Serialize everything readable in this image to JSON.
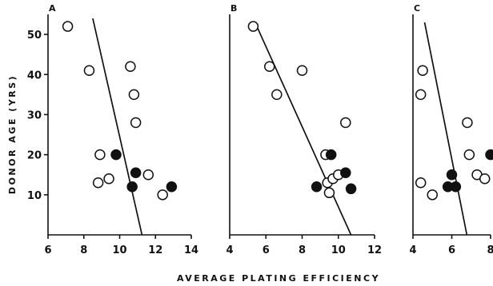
{
  "chart_data": {
    "type": "scatter",
    "xlabel": "AVERAGE PLATING EFFICIENCY",
    "ylabel": "DONOR AGE (YRS)",
    "panels": [
      {
        "label": "A",
        "xlim": [
          6,
          14
        ],
        "xticks": [
          6,
          8,
          10,
          12,
          14
        ],
        "ylim": [
          0,
          55
        ],
        "yticks": [
          10,
          20,
          30,
          40,
          50
        ],
        "show_y_ticks": true,
        "open_points": [
          {
            "x": 7.1,
            "y": 52
          },
          {
            "x": 8.3,
            "y": 41
          },
          {
            "x": 10.6,
            "y": 42
          },
          {
            "x": 10.8,
            "y": 35
          },
          {
            "x": 10.9,
            "y": 28
          },
          {
            "x": 8.9,
            "y": 20
          },
          {
            "x": 8.8,
            "y": 13
          },
          {
            "x": 9.4,
            "y": 14
          },
          {
            "x": 11.6,
            "y": 15
          },
          {
            "x": 12.4,
            "y": 10
          }
        ],
        "filled_points": [
          {
            "x": 9.8,
            "y": 20
          },
          {
            "x": 10.9,
            "y": 15.5
          },
          {
            "x": 10.7,
            "y": 12
          },
          {
            "x": 12.9,
            "y": 12
          }
        ],
        "trend_line": [
          {
            "x": 8.5,
            "y": 54
          },
          {
            "x": 11.4,
            "y": -3
          }
        ]
      },
      {
        "label": "B",
        "xlim": [
          4,
          12
        ],
        "xticks": [
          4,
          6,
          8,
          10,
          12
        ],
        "ylim": [
          0,
          55
        ],
        "yticks": [
          10,
          20,
          30,
          40,
          50
        ],
        "show_y_ticks": false,
        "open_points": [
          {
            "x": 5.3,
            "y": 52
          },
          {
            "x": 6.2,
            "y": 42
          },
          {
            "x": 6.6,
            "y": 35
          },
          {
            "x": 8.0,
            "y": 41
          },
          {
            "x": 10.4,
            "y": 28
          },
          {
            "x": 9.3,
            "y": 20
          },
          {
            "x": 9.4,
            "y": 13
          },
          {
            "x": 9.7,
            "y": 14
          },
          {
            "x": 10.0,
            "y": 15
          },
          {
            "x": 9.5,
            "y": 10.5
          }
        ],
        "filled_points": [
          {
            "x": 9.6,
            "y": 20
          },
          {
            "x": 10.4,
            "y": 15.5
          },
          {
            "x": 8.8,
            "y": 12
          },
          {
            "x": 10.7,
            "y": 11.5
          }
        ],
        "trend_line": [
          {
            "x": 5.5,
            "y": 52
          },
          {
            "x": 11.0,
            "y": -3
          }
        ]
      },
      {
        "label": "C",
        "xlim": [
          4,
          8
        ],
        "xticks": [
          4,
          6,
          8
        ],
        "ylim": [
          0,
          55
        ],
        "yticks": [
          10,
          20,
          30,
          40,
          50
        ],
        "show_y_ticks": false,
        "open_points": [
          {
            "x": 4.5,
            "y": 41
          },
          {
            "x": 4.4,
            "y": 35
          },
          {
            "x": 4.4,
            "y": 13
          },
          {
            "x": 5.0,
            "y": 10
          },
          {
            "x": 6.8,
            "y": 28
          },
          {
            "x": 6.9,
            "y": 20
          },
          {
            "x": 7.3,
            "y": 15
          },
          {
            "x": 7.7,
            "y": 14
          }
        ],
        "filled_points": [
          {
            "x": 6.0,
            "y": 15
          },
          {
            "x": 5.8,
            "y": 12
          },
          {
            "x": 6.2,
            "y": 12
          },
          {
            "x": 8.0,
            "y": 20
          }
        ],
        "trend_line": [
          {
            "x": 4.6,
            "y": 53
          },
          {
            "x": 6.9,
            "y": -3
          }
        ]
      }
    ]
  }
}
